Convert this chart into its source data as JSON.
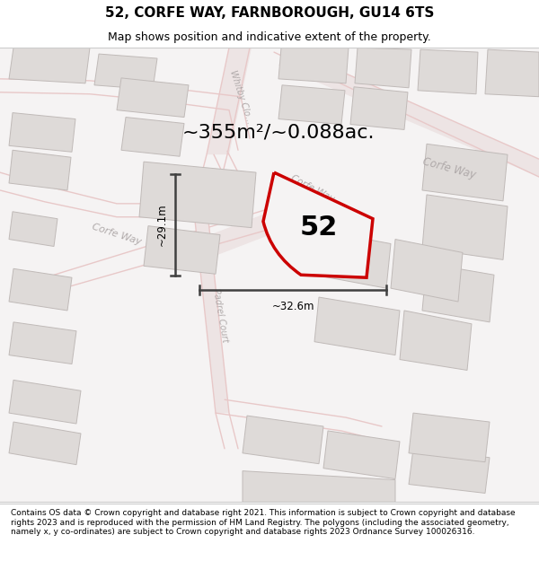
{
  "title": "52, CORFE WAY, FARNBOROUGH, GU14 6TS",
  "subtitle": "Map shows position and indicative extent of the property.",
  "area_text": "~355m²/~0.088ac.",
  "dim_width": "~32.6m",
  "dim_height": "~29.1m",
  "label_52": "52",
  "footer": "Contains OS data © Crown copyright and database right 2021. This information is subject to Crown copyright and database rights 2023 and is reproduced with the permission of HM Land Registry. The polygons (including the associated geometry, namely x, y co-ordinates) are subject to Crown copyright and database rights 2023 Ordnance Survey 100026316.",
  "map_bg": "#f5f3f3",
  "road_color": "#e8c8c8",
  "road_fill": "#f0e8e8",
  "building_color": "#dedad8",
  "building_edge": "#c0bab8",
  "plot_color": "#f5f3f3",
  "plot_edge": "#cc0000",
  "dim_line_color": "#404040",
  "street_text_color": "#b0aaaa",
  "title_fontsize": 11,
  "subtitle_fontsize": 9,
  "area_fontsize": 16,
  "label_fontsize": 22,
  "footer_fontsize": 6.5,
  "figsize": [
    6.0,
    6.25
  ],
  "dpi": 100
}
